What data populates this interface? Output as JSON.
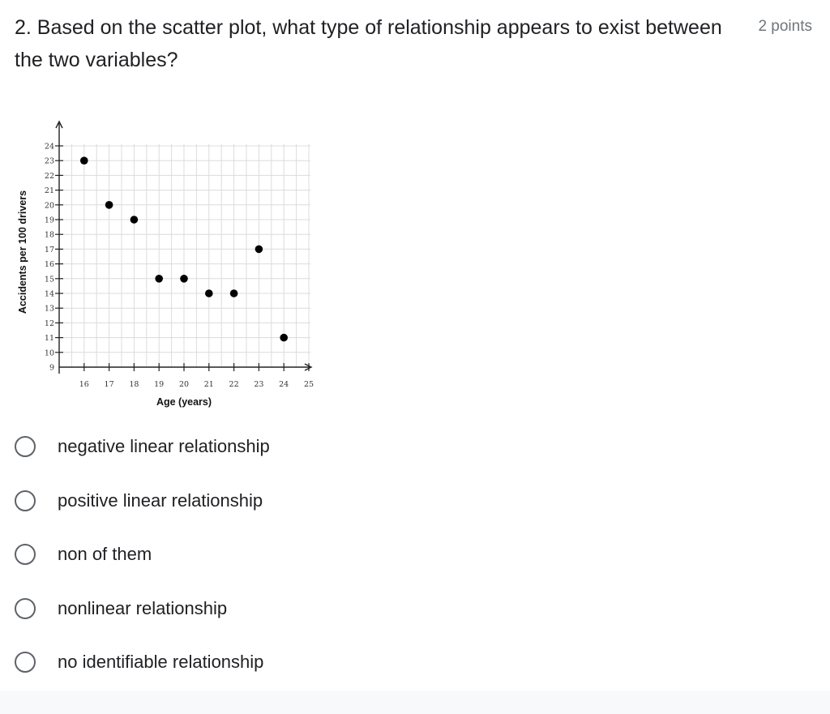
{
  "question": {
    "text": "2. Based on the scatter plot, what type of relationship appears to exist between the two variables?",
    "points": "2 points"
  },
  "chart_data": {
    "type": "scatter",
    "xlabel": "Age (years)",
    "ylabel": "Accidents per 100 drivers",
    "xlim": [
      15,
      25
    ],
    "ylim": [
      9,
      24
    ],
    "x_ticks": [
      16,
      17,
      18,
      19,
      20,
      21,
      22,
      23,
      24,
      25
    ],
    "y_ticks": [
      9,
      10,
      11,
      12,
      13,
      14,
      15,
      16,
      17,
      18,
      19,
      20,
      21,
      22,
      23,
      24
    ],
    "grid": true,
    "points": [
      {
        "x": 16,
        "y": 23
      },
      {
        "x": 17,
        "y": 20
      },
      {
        "x": 18,
        "y": 19
      },
      {
        "x": 19,
        "y": 15
      },
      {
        "x": 20,
        "y": 15
      },
      {
        "x": 21,
        "y": 14
      },
      {
        "x": 22,
        "y": 14
      },
      {
        "x": 23,
        "y": 17
      },
      {
        "x": 24,
        "y": 11
      }
    ]
  },
  "options": [
    {
      "label": "negative linear relationship"
    },
    {
      "label": "positive linear relationship"
    },
    {
      "label": "non of them"
    },
    {
      "label": "nonlinear relationship"
    },
    {
      "label": "no identifiable relationship"
    }
  ]
}
